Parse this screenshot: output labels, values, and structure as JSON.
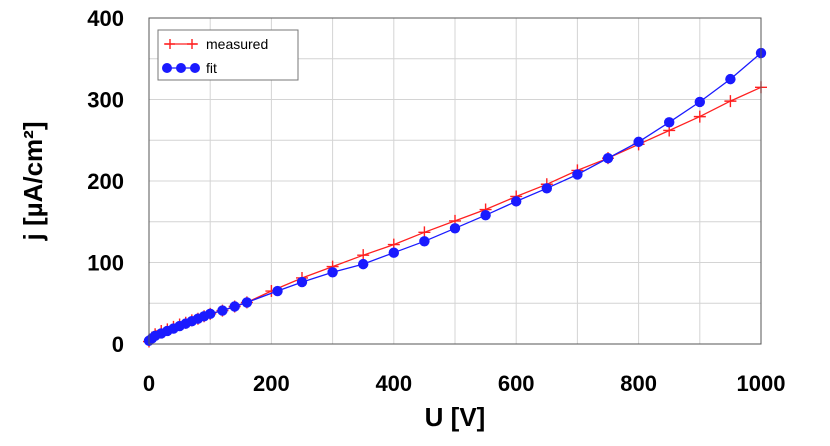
{
  "chart_data": {
    "type": "line",
    "xlabel": "U [V]",
    "ylabel": "j [µA/cm²]",
    "xlim": [
      0,
      1000
    ],
    "ylim": [
      0,
      400
    ],
    "x_ticks": [
      "0",
      "200",
      "400",
      "600",
      "800",
      "1000"
    ],
    "y_ticks": [
      "0",
      "100",
      "200",
      "300",
      "400"
    ],
    "grid": true,
    "legend_position": "top-left",
    "colors": {
      "measured": "#ff2020",
      "fit": "#1a1aff"
    },
    "series": [
      {
        "name": "measured",
        "marker": "plus",
        "x": [
          0,
          5,
          10,
          20,
          30,
          40,
          50,
          60,
          70,
          80,
          90,
          100,
          120,
          140,
          160,
          200,
          250,
          300,
          350,
          400,
          450,
          500,
          550,
          600,
          650,
          700,
          750,
          800,
          850,
          900,
          950,
          1000
        ],
        "y": [
          3,
          8,
          12,
          16,
          18,
          21,
          24,
          26,
          29,
          31,
          34,
          37,
          41,
          46,
          51,
          65,
          81,
          95,
          109,
          122,
          137,
          151,
          165,
          181,
          196,
          213,
          228,
          245,
          262,
          279,
          298,
          315
        ]
      },
      {
        "name": "fit",
        "marker": "circle",
        "x": [
          0,
          5,
          10,
          20,
          30,
          40,
          50,
          60,
          70,
          80,
          90,
          100,
          120,
          140,
          160,
          210,
          250,
          300,
          350,
          400,
          450,
          500,
          550,
          600,
          650,
          700,
          750,
          800,
          850,
          900,
          950,
          1000
        ],
        "y": [
          4,
          7,
          10,
          13,
          16,
          19,
          22,
          25,
          28,
          31,
          34,
          37,
          41,
          46,
          51,
          65,
          76,
          88,
          98,
          112,
          126,
          142,
          158,
          175,
          191,
          208,
          228,
          248,
          272,
          297,
          325,
          357
        ]
      }
    ]
  }
}
